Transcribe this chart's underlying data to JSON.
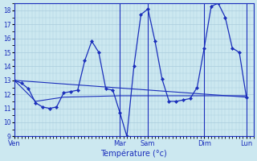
{
  "background_color": "#cce8f0",
  "grid_color": "#aaccdd",
  "line_color": "#1a2ebb",
  "ylim": [
    9,
    18.5
  ],
  "yticks": [
    9,
    10,
    11,
    12,
    13,
    14,
    15,
    16,
    17,
    18
  ],
  "xlabel": "Température (°c)",
  "xlabel_color": "#1a2ebb",
  "day_labels": [
    "Ven",
    "Mar",
    "Sam",
    "Dim",
    "Lun"
  ],
  "vline_positions": [
    0,
    15,
    19,
    27,
    33
  ],
  "xlim": [
    0,
    34
  ],
  "series": {
    "wavy": {
      "x": [
        0,
        1,
        2,
        3,
        4,
        5,
        6,
        7,
        8,
        9,
        10,
        11,
        12,
        13,
        14,
        15,
        16,
        17,
        18,
        19,
        20,
        21,
        22,
        23,
        24,
        25,
        26,
        27,
        28,
        29,
        30,
        31,
        32,
        33
      ],
      "y": [
        13.0,
        12.8,
        12.4,
        11.4,
        11.1,
        11.0,
        11.1,
        12.1,
        12.2,
        12.3,
        14.4,
        15.8,
        15.0,
        12.4,
        12.3,
        10.7,
        9.0,
        14.0,
        17.7,
        18.1,
        15.8,
        13.1,
        11.5,
        11.5,
        11.6,
        11.7,
        12.5,
        15.3,
        18.3,
        18.5,
        17.5,
        15.3,
        15.0,
        11.8
      ]
    },
    "flat1": {
      "x": [
        0,
        33
      ],
      "y": [
        13.0,
        11.8
      ]
    },
    "flat2": {
      "x": [
        0,
        3,
        7,
        15,
        19,
        27,
        33
      ],
      "y": [
        13.0,
        11.5,
        11.8,
        11.9,
        11.9,
        11.9,
        11.9
      ]
    }
  }
}
